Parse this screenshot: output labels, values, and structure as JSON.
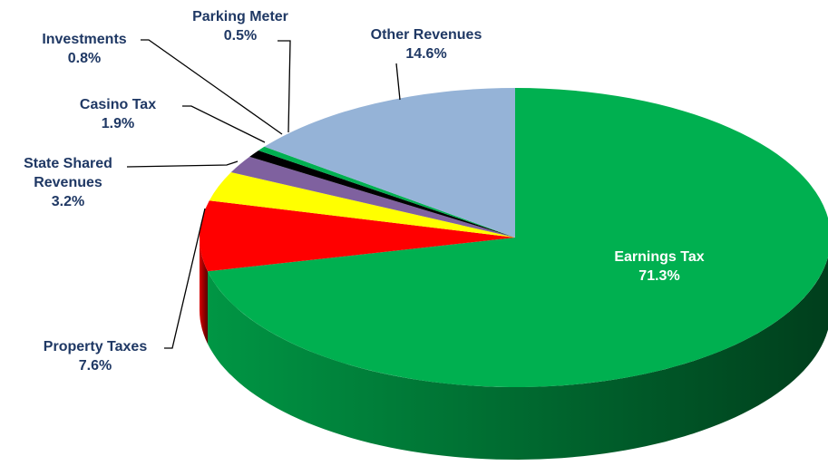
{
  "chart_data": {
    "type": "pie3d",
    "categories": [
      "Earnings Tax",
      "Property Taxes",
      "State Shared Revenues",
      "Casino Tax",
      "Investments",
      "Parking Meter",
      "Other Revenues"
    ],
    "values": [
      71.3,
      7.6,
      3.2,
      1.9,
      0.8,
      0.5,
      14.6
    ],
    "value_labels": [
      "71.3%",
      "7.6%",
      "3.2%",
      "1.9%",
      "0.8%",
      "0.5%",
      "14.6%"
    ],
    "colors": [
      "#00b050",
      "#ff0000",
      "#ffff00",
      "#7f619f",
      "#000000",
      "#00b050",
      "#95b3d7"
    ]
  }
}
